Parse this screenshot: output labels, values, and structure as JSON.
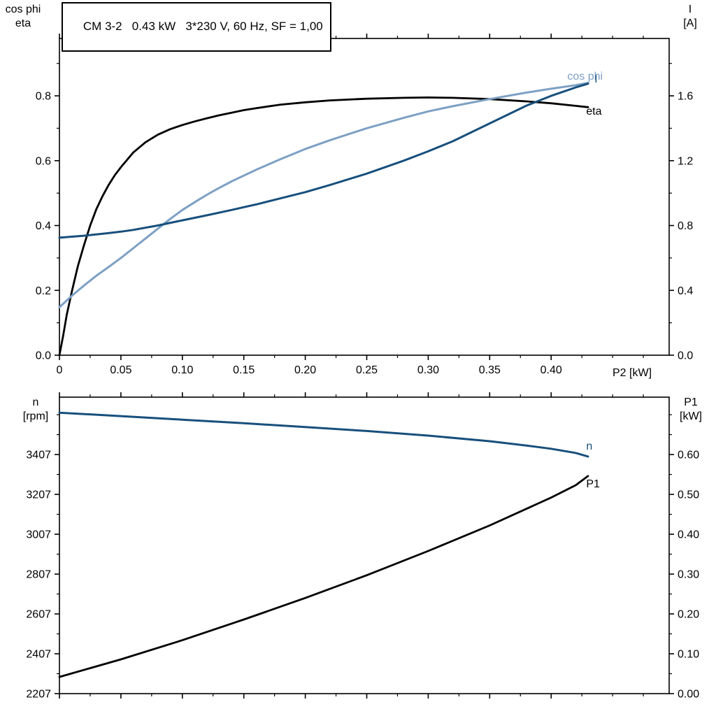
{
  "page": {
    "background": "#ffffff"
  },
  "colors": {
    "black": "#000000",
    "dark_blue": "#174f7c",
    "light_blue": "#7da0c4",
    "frame": "#000000"
  },
  "chart_data": [
    {
      "id": "motor-top",
      "type": "line",
      "title": "CM 3-2   0.43 kW   3*230 V, 60 Hz, SF = 1,00",
      "grid": false,
      "x_axis": {
        "label": "P2 [kW]",
        "min": 0,
        "max": 0.496,
        "ticks": [
          0,
          0.05,
          0.1,
          0.15,
          0.2,
          0.25,
          0.3,
          0.35,
          0.4
        ],
        "tick_labels": [
          "0",
          "0.05",
          "0.10",
          "0.15",
          "0.20",
          "0.25",
          "0.30",
          "0.35",
          "0.40"
        ]
      },
      "left_axis": {
        "title_lines": [
          "cos phi",
          "eta"
        ],
        "min": 0,
        "max": 0.977,
        "ticks": [
          0,
          0.2,
          0.4,
          0.6,
          0.8
        ],
        "tick_labels": [
          "0.0",
          "0.2",
          "0.4",
          "0.6",
          "0.8"
        ]
      },
      "right_axis": {
        "title_lines": [
          "I",
          "[A]"
        ],
        "min": 0,
        "max": 1.954,
        "ticks": [
          0,
          0.4,
          0.8,
          1.2,
          1.6
        ],
        "tick_labels": [
          "0.0",
          "0.4",
          "0.8",
          "1.2",
          "1.6"
        ]
      },
      "series": [
        {
          "name": "eta",
          "axis": "left",
          "color": "#000000",
          "width": 2.8,
          "label": {
            "text": "eta",
            "x": 0.4285,
            "y": 0.742,
            "anchor": "start",
            "color": "#000000"
          },
          "points": [
            [
              0,
              0
            ],
            [
              0.003,
              0.06
            ],
            [
              0.006,
              0.125
            ],
            [
              0.01,
              0.195
            ],
            [
              0.015,
              0.275
            ],
            [
              0.02,
              0.34
            ],
            [
              0.025,
              0.4
            ],
            [
              0.03,
              0.45
            ],
            [
              0.035,
              0.49
            ],
            [
              0.04,
              0.525
            ],
            [
              0.045,
              0.555
            ],
            [
              0.05,
              0.58
            ],
            [
              0.06,
              0.625
            ],
            [
              0.07,
              0.657
            ],
            [
              0.08,
              0.68
            ],
            [
              0.09,
              0.697
            ],
            [
              0.1,
              0.71
            ],
            [
              0.11,
              0.721
            ],
            [
              0.12,
              0.731
            ],
            [
              0.13,
              0.74
            ],
            [
              0.14,
              0.748
            ],
            [
              0.15,
              0.756
            ],
            [
              0.16,
              0.762
            ],
            [
              0.18,
              0.773
            ],
            [
              0.2,
              0.78
            ],
            [
              0.22,
              0.786
            ],
            [
              0.25,
              0.791
            ],
            [
              0.28,
              0.794
            ],
            [
              0.3,
              0.795
            ],
            [
              0.32,
              0.794
            ],
            [
              0.35,
              0.79
            ],
            [
              0.38,
              0.783
            ],
            [
              0.4,
              0.777
            ],
            [
              0.42,
              0.769
            ],
            [
              0.43,
              0.765
            ]
          ]
        },
        {
          "name": "cos phi",
          "axis": "left",
          "color": "#7da0c4",
          "width": 3,
          "label": {
            "text": "cos phi",
            "x": 0.442,
            "y": 0.85,
            "anchor": "end",
            "color": "#7da0c4"
          },
          "points": [
            [
              0,
              0.148
            ],
            [
              0.01,
              0.183
            ],
            [
              0.02,
              0.215
            ],
            [
              0.03,
              0.245
            ],
            [
              0.04,
              0.272
            ],
            [
              0.05,
              0.3
            ],
            [
              0.06,
              0.33
            ],
            [
              0.07,
              0.36
            ],
            [
              0.08,
              0.39
            ],
            [
              0.09,
              0.42
            ],
            [
              0.1,
              0.448
            ],
            [
              0.11,
              0.472
            ],
            [
              0.12,
              0.495
            ],
            [
              0.13,
              0.516
            ],
            [
              0.14,
              0.536
            ],
            [
              0.15,
              0.554
            ],
            [
              0.16,
              0.572
            ],
            [
              0.18,
              0.605
            ],
            [
              0.2,
              0.636
            ],
            [
              0.22,
              0.663
            ],
            [
              0.25,
              0.7
            ],
            [
              0.28,
              0.732
            ],
            [
              0.3,
              0.752
            ],
            [
              0.32,
              0.768
            ],
            [
              0.35,
              0.79
            ],
            [
              0.38,
              0.81
            ],
            [
              0.4,
              0.822
            ],
            [
              0.42,
              0.833
            ],
            [
              0.43,
              0.84
            ]
          ]
        },
        {
          "name": "I",
          "axis": "right",
          "color": "#174f7c",
          "width": 3,
          "label": {
            "text": "I",
            "x": 0.4365,
            "y": 1.683,
            "anchor": "middle",
            "color": "#174f7c"
          },
          "points": [
            [
              0,
              0.725
            ],
            [
              0.02,
              0.737
            ],
            [
              0.04,
              0.753
            ],
            [
              0.05,
              0.762
            ],
            [
              0.06,
              0.773
            ],
            [
              0.08,
              0.8
            ],
            [
              0.1,
              0.832
            ],
            [
              0.12,
              0.863
            ],
            [
              0.14,
              0.896
            ],
            [
              0.15,
              0.913
            ],
            [
              0.16,
              0.93
            ],
            [
              0.18,
              0.968
            ],
            [
              0.2,
              1.006
            ],
            [
              0.22,
              1.05
            ],
            [
              0.25,
              1.12
            ],
            [
              0.28,
              1.2
            ],
            [
              0.3,
              1.258
            ],
            [
              0.32,
              1.32
            ],
            [
              0.35,
              1.43
            ],
            [
              0.38,
              1.54
            ],
            [
              0.4,
              1.6
            ],
            [
              0.42,
              1.652
            ],
            [
              0.43,
              1.675
            ]
          ]
        }
      ]
    },
    {
      "id": "motor-bottom",
      "type": "line",
      "title": "",
      "grid": false,
      "x_axis": {
        "label": "",
        "min": 0,
        "max": 0.496,
        "ticks": [
          0,
          0.05,
          0.1,
          0.15,
          0.2,
          0.25,
          0.3,
          0.35,
          0.4
        ],
        "tick_labels": []
      },
      "left_axis": {
        "title_lines": [
          "n",
          "[rpm]"
        ],
        "min": 2207,
        "max": 3695,
        "ticks": [
          2207,
          2407,
          2607,
          2807,
          3007,
          3207,
          3407
        ],
        "tick_labels": [
          "2207",
          "2407",
          "2607",
          "2807",
          "3007",
          "3207",
          "3407"
        ]
      },
      "right_axis": {
        "title_lines": [
          "P1",
          "[kW]"
        ],
        "min": 0,
        "max": 0.744,
        "ticks": [
          0,
          0.1,
          0.2,
          0.3,
          0.4,
          0.5,
          0.6
        ],
        "tick_labels": [
          "0.00",
          "0.10",
          "0.20",
          "0.30",
          "0.40",
          "0.50",
          "0.60"
        ]
      },
      "series": [
        {
          "name": "n",
          "axis": "left",
          "color": "#174f7c",
          "width": 3,
          "label": {
            "text": "n",
            "x": 0.4285,
            "y": 3432,
            "anchor": "start",
            "color": "#174f7c"
          },
          "points": [
            [
              0,
              3617
            ],
            [
              0.05,
              3600
            ],
            [
              0.1,
              3582
            ],
            [
              0.15,
              3564
            ],
            [
              0.2,
              3545
            ],
            [
              0.25,
              3525
            ],
            [
              0.3,
              3502
            ],
            [
              0.35,
              3474
            ],
            [
              0.38,
              3452
            ],
            [
              0.4,
              3436
            ],
            [
              0.42,
              3415
            ],
            [
              0.43,
              3397
            ]
          ]
        },
        {
          "name": "P1",
          "axis": "right",
          "color": "#000000",
          "width": 2.8,
          "label": {
            "text": "P1",
            "x": 0.4285,
            "y": 0.518,
            "anchor": "start",
            "color": "#000000"
          },
          "points": [
            [
              0,
              0.042
            ],
            [
              0.05,
              0.086
            ],
            [
              0.1,
              0.134
            ],
            [
              0.15,
              0.186
            ],
            [
              0.2,
              0.24
            ],
            [
              0.25,
              0.297
            ],
            [
              0.3,
              0.358
            ],
            [
              0.35,
              0.422
            ],
            [
              0.4,
              0.492
            ],
            [
              0.42,
              0.523
            ],
            [
              0.43,
              0.546
            ]
          ]
        }
      ]
    }
  ]
}
